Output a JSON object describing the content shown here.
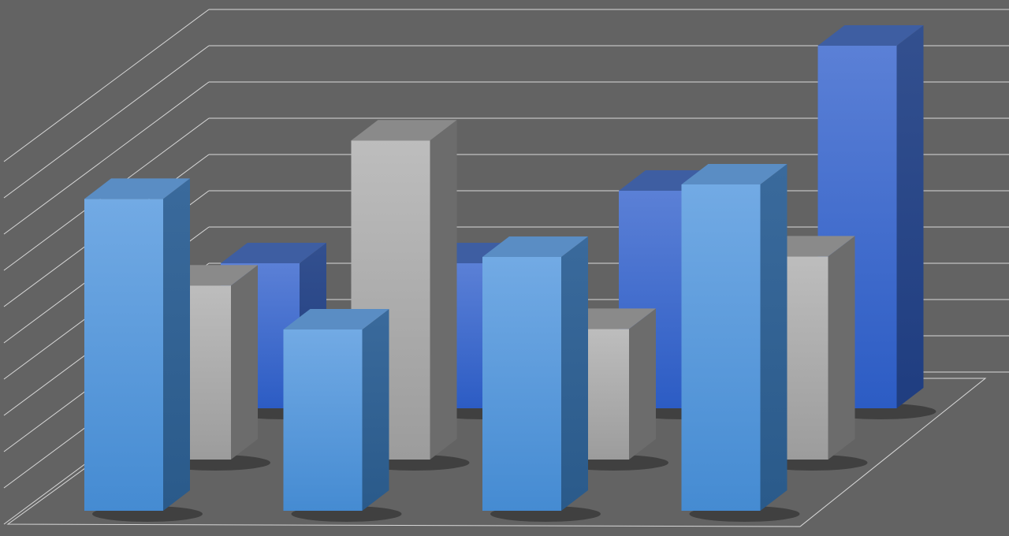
{
  "chart_data": {
    "type": "bar",
    "style": "3d-clustered-depth",
    "title": "",
    "xlabel": "",
    "ylabel": "",
    "categories": [
      "",
      "",
      "",
      ""
    ],
    "series": [
      {
        "values": [
          8.6,
          5.0,
          7.0,
          9.0
        ],
        "row": "front",
        "color": "#5a9bdc"
      },
      {
        "values": [
          4.8,
          8.8,
          3.6,
          5.6
        ],
        "row": "middle",
        "color": "#b0b0b0"
      },
      {
        "values": [
          4.0,
          4.0,
          6.0,
          10.0
        ],
        "row": "back",
        "color": "#3f6fd0"
      }
    ],
    "ylim": [
      0,
      10
    ],
    "grid": true,
    "legend": "none",
    "colors": {
      "background": "#636363",
      "gridline": "#d8d8d8"
    }
  }
}
